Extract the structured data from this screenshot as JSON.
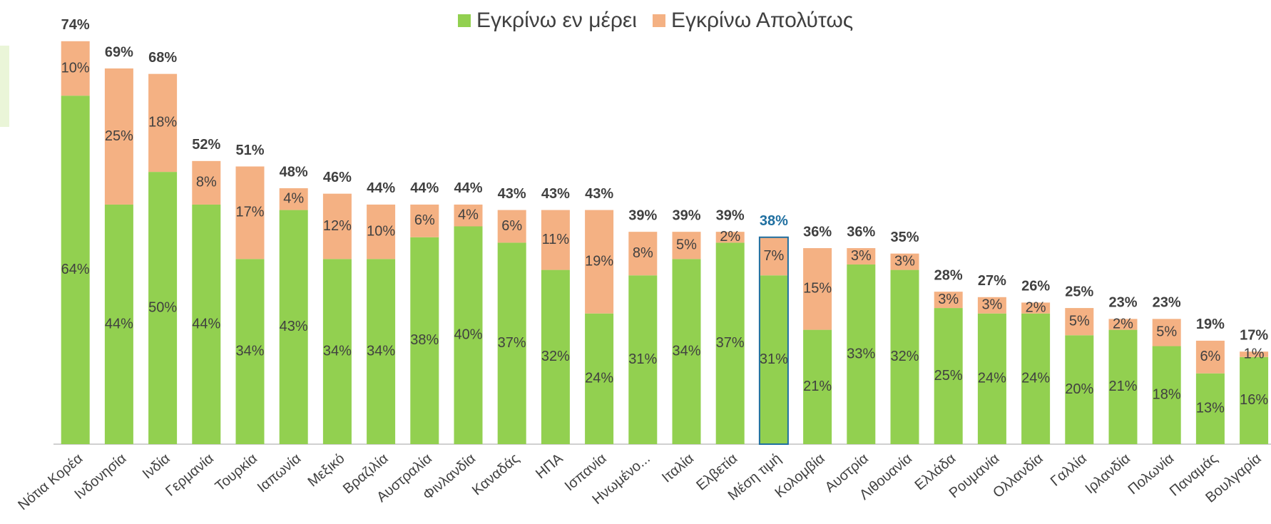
{
  "chart_data": {
    "type": "stacked_bar",
    "categories": [
      "Νότια Κορέα",
      "Ινδονησία",
      "Ινδία",
      "Γερμανία",
      "Τουρκία",
      "Ιαπωνία",
      "Μεξικό",
      "Βραζιλία",
      "Αυστραλία",
      "Φινλανδία",
      "Καναδάς",
      "ΗΠΑ",
      "Ισπανία",
      "Ηνωμένο...",
      "Ιταλία",
      "Ελβετία",
      "Μέση τιμή",
      "Κολομβία",
      "Αυστρία",
      "Λιθουανία",
      "Ελλάδα",
      "Ρουμανία",
      "Ολλανδία",
      "Γαλλία",
      "Ιρλανδία",
      "Πολωνία",
      "Παναμάς",
      "Βουλγαρία"
    ],
    "series": [
      {
        "name": "Εγκρίνω εν μέρει",
        "color": "#92d050",
        "values": [
          64,
          44,
          50,
          44,
          34,
          43,
          34,
          34,
          38,
          40,
          37,
          32,
          24,
          31,
          34,
          37,
          31,
          21,
          33,
          32,
          25,
          24,
          24,
          20,
          21,
          18,
          13,
          16
        ],
        "value_labels": [
          "64%",
          "44%",
          "50%",
          "44%",
          "34%",
          "43%",
          "34%",
          "34%",
          "38%",
          "40%",
          "37%",
          "32%",
          "24%",
          "31%",
          "34%",
          "37%",
          "31%",
          "21%",
          "33%",
          "32%",
          "25%",
          "24%",
          "24%",
          "20%",
          "21%",
          "18%",
          "13%",
          "16%"
        ]
      },
      {
        "name": "Εγκρίνω Απολύτως",
        "color": "#f4b183",
        "values": [
          10,
          25,
          18,
          8,
          17,
          4,
          12,
          10,
          6,
          4,
          6,
          11,
          19,
          8,
          5,
          2,
          7,
          15,
          3,
          3,
          3,
          3,
          2,
          5,
          2,
          5,
          6,
          1
        ],
        "value_labels": [
          "10%",
          "25%",
          "18%",
          "8%",
          "17%",
          "4%",
          "12%",
          "10%",
          "6%",
          "4%",
          "6%",
          "11%",
          "19%",
          "8%",
          "5%",
          "2%",
          "7%",
          "15%",
          "3%",
          "3%",
          "3%",
          "3%",
          "2%",
          "5%",
          "2%",
          "5%",
          "6%",
          "1%"
        ]
      }
    ],
    "totals": {
      "values": [
        74,
        69,
        68,
        52,
        51,
        48,
        46,
        44,
        44,
        44,
        43,
        43,
        43,
        39,
        39,
        39,
        38,
        36,
        36,
        35,
        28,
        27,
        26,
        25,
        23,
        23,
        19,
        17
      ],
      "value_labels": [
        "74%",
        "69%",
        "68%",
        "52%",
        "51%",
        "48%",
        "46%",
        "44%",
        "44%",
        "44%",
        "43%",
        "43%",
        "43%",
        "39%",
        "39%",
        "39%",
        "38%",
        "36%",
        "36%",
        "35%",
        "28%",
        "27%",
        "26%",
        "25%",
        "23%",
        "23%",
        "19%",
        "17%"
      ]
    },
    "highlight_index": 16,
    "highlight_color": "#1f6fa0",
    "ylim": [
      0,
      80
    ],
    "legend": "top"
  }
}
